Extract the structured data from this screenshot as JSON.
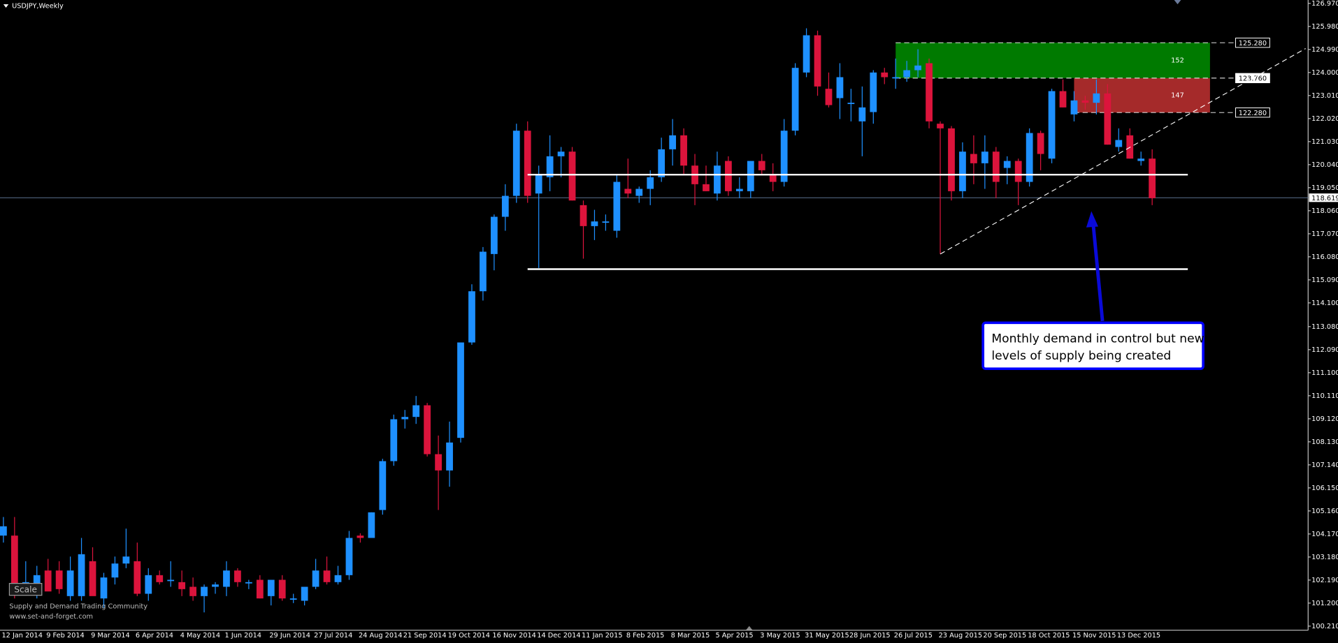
{
  "chart_data": {
    "type": "candlestick",
    "title": "USDJPY,Weekly",
    "categories": [
      "12 Jan 2014",
      null,
      null,
      null,
      "9 Feb 2014",
      null,
      null,
      null,
      "9 Mar 2014",
      null,
      null,
      null,
      "6 Apr 2014",
      null,
      null,
      null,
      "4 May 2014",
      null,
      null,
      null,
      "1 Jun 2014",
      null,
      null,
      null,
      "29 Jun 2014",
      null,
      null,
      null,
      "27 Jul 2014",
      null,
      null,
      null,
      "24 Aug 2014",
      null,
      null,
      null,
      "21 Sep 2014",
      null,
      null,
      null,
      "19 Oct 2014",
      null,
      null,
      null,
      "16 Nov 2014",
      null,
      null,
      null,
      "14 Dec 2014",
      null,
      null,
      null,
      "11 Jan 2015",
      null,
      null,
      null,
      "8 Feb 2015",
      null,
      null,
      null,
      "8 Mar 2015",
      null,
      null,
      null,
      "5 Apr 2015",
      null,
      null,
      null,
      "3 May 2015",
      null,
      null,
      null,
      "31 May 2015",
      null,
      null,
      null,
      "28 Jun 2015",
      null,
      null,
      null,
      "26 Jul 2015",
      null,
      null,
      null,
      "23 Aug 2015",
      null,
      null,
      null,
      "20 Sep 2015",
      null,
      null,
      null,
      "18 Oct 2015",
      null,
      null,
      null,
      "15 Nov 2015",
      null,
      null,
      null,
      "13 Dec 2015",
      null,
      null,
      null
    ],
    "ohlc": [
      [
        104.1,
        104.9,
        103.8,
        104.5
      ],
      [
        104.1,
        104.9,
        101.4,
        101.7
      ],
      [
        102.0,
        103.0,
        101.6,
        102.1
      ],
      [
        101.7,
        102.8,
        101.4,
        102.4
      ],
      [
        102.6,
        103.1,
        101.8,
        101.7
      ],
      [
        102.6,
        103.0,
        101.6,
        101.8
      ],
      [
        101.5,
        103.2,
        101.3,
        102.6
      ],
      [
        101.5,
        104.0,
        101.3,
        103.3
      ],
      [
        103.0,
        103.6,
        101.6,
        101.5
      ],
      [
        101.4,
        102.5,
        101.0,
        102.3
      ],
      [
        102.3,
        103.2,
        102.0,
        102.9
      ],
      [
        102.9,
        104.4,
        102.7,
        103.2
      ],
      [
        103.0,
        103.8,
        101.5,
        101.6
      ],
      [
        101.6,
        102.7,
        101.3,
        102.4
      ],
      [
        102.4,
        102.6,
        102.0,
        102.1
      ],
      [
        102.2,
        103.0,
        101.9,
        102.2
      ],
      [
        102.1,
        102.6,
        101.5,
        101.8
      ],
      [
        101.9,
        102.3,
        101.3,
        101.5
      ],
      [
        101.5,
        102.0,
        100.8,
        101.9
      ],
      [
        101.9,
        102.1,
        101.6,
        102.0
      ],
      [
        101.9,
        103.0,
        101.5,
        102.6
      ],
      [
        102.6,
        102.7,
        101.9,
        102.1
      ],
      [
        102.1,
        102.2,
        101.8,
        102.1
      ],
      [
        102.2,
        102.4,
        101.4,
        101.4
      ],
      [
        101.5,
        102.2,
        101.1,
        102.2
      ],
      [
        102.2,
        102.4,
        101.3,
        101.4
      ],
      [
        101.4,
        101.6,
        101.2,
        101.4
      ],
      [
        101.3,
        101.9,
        101.1,
        101.9
      ],
      [
        101.9,
        103.1,
        101.8,
        102.6
      ],
      [
        102.6,
        103.2,
        102.0,
        102.1
      ],
      [
        102.1,
        102.8,
        102.0,
        102.4
      ],
      [
        102.4,
        104.3,
        102.2,
        104.0
      ],
      [
        104.1,
        104.2,
        103.8,
        104.0
      ],
      [
        104.0,
        105.1,
        104.0,
        105.1
      ],
      [
        105.2,
        107.4,
        105.0,
        107.3
      ],
      [
        107.3,
        109.3,
        107.1,
        109.1
      ],
      [
        109.1,
        109.5,
        108.7,
        109.2
      ],
      [
        109.2,
        110.1,
        108.9,
        109.7
      ],
      [
        109.7,
        109.8,
        107.5,
        107.6
      ],
      [
        107.6,
        108.4,
        105.2,
        106.9
      ],
      [
        106.9,
        109.0,
        106.2,
        108.1
      ],
      [
        108.3,
        112.4,
        108.1,
        112.4
      ],
      [
        112.4,
        114.9,
        112.3,
        114.6
      ],
      [
        114.6,
        116.5,
        114.2,
        116.3
      ],
      [
        116.2,
        117.9,
        115.5,
        117.8
      ],
      [
        117.8,
        119.2,
        117.2,
        118.7
      ],
      [
        118.7,
        121.8,
        118.4,
        121.5
      ],
      [
        121.5,
        121.9,
        118.4,
        118.7
      ],
      [
        118.8,
        120.0,
        115.6,
        119.6
      ],
      [
        119.5,
        121.3,
        118.9,
        120.4
      ],
      [
        120.4,
        120.8,
        119.5,
        120.6
      ],
      [
        120.6,
        120.8,
        118.5,
        118.5
      ],
      [
        118.3,
        118.5,
        116.0,
        117.4
      ],
      [
        117.4,
        118.1,
        116.8,
        117.6
      ],
      [
        117.6,
        117.9,
        117.2,
        117.6
      ],
      [
        117.2,
        119.6,
        116.9,
        119.3
      ],
      [
        119.0,
        120.3,
        118.6,
        118.8
      ],
      [
        118.7,
        119.1,
        118.4,
        119.0
      ],
      [
        119.0,
        119.8,
        118.3,
        119.5
      ],
      [
        119.5,
        121.2,
        119.3,
        120.7
      ],
      [
        120.7,
        122.0,
        120.0,
        121.3
      ],
      [
        121.3,
        121.6,
        119.6,
        120.0
      ],
      [
        120.0,
        120.5,
        118.3,
        119.2
      ],
      [
        119.2,
        120.0,
        118.9,
        118.9
      ],
      [
        118.8,
        120.6,
        118.5,
        120.0
      ],
      [
        120.2,
        120.4,
        118.7,
        118.9
      ],
      [
        118.9,
        119.5,
        118.6,
        119.0
      ],
      [
        118.9,
        120.2,
        118.6,
        120.2
      ],
      [
        120.2,
        120.5,
        119.6,
        119.8
      ],
      [
        119.6,
        120.1,
        118.9,
        119.3
      ],
      [
        119.3,
        122.0,
        119.1,
        121.5
      ],
      [
        121.5,
        124.4,
        121.3,
        124.2
      ],
      [
        124.0,
        125.9,
        123.8,
        125.6
      ],
      [
        125.6,
        125.8,
        123.0,
        123.4
      ],
      [
        123.3,
        124.0,
        122.5,
        122.6
      ],
      [
        122.9,
        124.4,
        122.0,
        123.8
      ],
      [
        122.7,
        123.3,
        121.9,
        122.7
      ],
      [
        121.9,
        123.4,
        120.4,
        122.5
      ],
      [
        122.3,
        124.1,
        121.8,
        124.0
      ],
      [
        124.0,
        124.2,
        123.5,
        123.8
      ],
      [
        123.8,
        124.6,
        123.3,
        123.8
      ],
      [
        123.8,
        124.5,
        123.6,
        124.1
      ],
      [
        124.1,
        125.0,
        123.8,
        124.3
      ],
      [
        124.4,
        124.6,
        121.6,
        121.9
      ],
      [
        121.8,
        121.9,
        116.2,
        121.6
      ],
      [
        121.6,
        121.7,
        118.5,
        118.9
      ],
      [
        118.9,
        121.0,
        118.6,
        120.6
      ],
      [
        120.5,
        121.3,
        119.2,
        120.1
      ],
      [
        120.1,
        121.3,
        119.0,
        120.6
      ],
      [
        120.6,
        120.8,
        118.6,
        119.3
      ],
      [
        119.9,
        120.4,
        119.2,
        120.2
      ],
      [
        120.2,
        120.3,
        118.3,
        119.3
      ],
      [
        119.3,
        121.6,
        119.1,
        121.4
      ],
      [
        121.4,
        121.5,
        119.8,
        120.5
      ],
      [
        120.3,
        123.3,
        120.1,
        123.2
      ],
      [
        123.2,
        123.7,
        122.5,
        122.5
      ],
      [
        122.2,
        123.2,
        121.9,
        122.8
      ],
      [
        122.8,
        123.0,
        122.4,
        122.7
      ],
      [
        122.7,
        123.7,
        122.2,
        123.1
      ],
      [
        123.1,
        123.5,
        120.9,
        120.9
      ],
      [
        120.8,
        121.6,
        120.6,
        121.1
      ],
      [
        121.3,
        121.6,
        120.3,
        120.3
      ],
      [
        120.2,
        120.6,
        120.0,
        120.3
      ],
      [
        120.3,
        120.7,
        118.3,
        118.6
      ]
    ],
    "up_color": "#1e90ff",
    "down_color": "#dc143c",
    "ylim": [
      100.034,
      127.116
    ],
    "yticks": [
      {
        "value": 126.97,
        "label": "126.970"
      },
      {
        "value": 125.98,
        "label": "125.980"
      },
      {
        "value": 124.99,
        "label": "124.990"
      },
      {
        "value": 124,
        "label": "124.000"
      },
      {
        "value": 123.01,
        "label": "123.010"
      },
      {
        "value": 122.02,
        "label": "122.020"
      },
      {
        "value": 121.03,
        "label": "121.030"
      },
      {
        "value": 120.04,
        "label": "120.040"
      },
      {
        "value": 119.05,
        "label": "119.050"
      },
      {
        "value": 118.06,
        "label": "118.060"
      },
      {
        "value": 117.07,
        "label": "117.070"
      },
      {
        "value": 116.08,
        "label": "116.080"
      },
      {
        "value": 115.09,
        "label": "115.090"
      },
      {
        "value": 114.1,
        "label": "114.100"
      },
      {
        "value": 113.08,
        "label": "113.080"
      },
      {
        "value": 112.09,
        "label": "112.090"
      },
      {
        "value": 111.1,
        "label": "111.100"
      },
      {
        "value": 110.11,
        "label": "110.110"
      },
      {
        "value": 109.12,
        "label": "109.120"
      },
      {
        "value": 108.13,
        "label": "108.130"
      },
      {
        "value": 107.14,
        "label": "107.140"
      },
      {
        "value": 106.15,
        "label": "106.150"
      },
      {
        "value": 105.16,
        "label": "105.160"
      },
      {
        "value": 104.17,
        "label": "104.170"
      },
      {
        "value": 103.18,
        "label": "103.180"
      },
      {
        "value": 102.19,
        "label": "102.190"
      },
      {
        "value": 101.2,
        "label": "101.200"
      },
      {
        "value": 100.21,
        "label": "100.210"
      }
    ],
    "current_price": {
      "value": 118.619,
      "label": "118.619"
    },
    "zones": [
      {
        "label": "152",
        "top": 125.28,
        "bottom": 123.76,
        "color": "#007a00"
      },
      {
        "label": "147",
        "top": 123.76,
        "bottom": 122.28,
        "color": "#a52a2a"
      }
    ],
    "price_tags": [
      {
        "value": 125.28,
        "label": "125.280"
      },
      {
        "value": 123.76,
        "label": "123.760"
      },
      {
        "value": 122.28,
        "label": "122.280"
      }
    ],
    "support_levels": [
      119.61,
      115.55
    ],
    "trendline": [
      116.2,
      125.03
    ],
    "annotation": [
      "Monthly demand in control but new",
      "levels of supply being created"
    ]
  },
  "footer": {
    "button": "Scale",
    "line1": "Supply and Demand Trading Community",
    "line2": "www.set-and-forget.com"
  }
}
